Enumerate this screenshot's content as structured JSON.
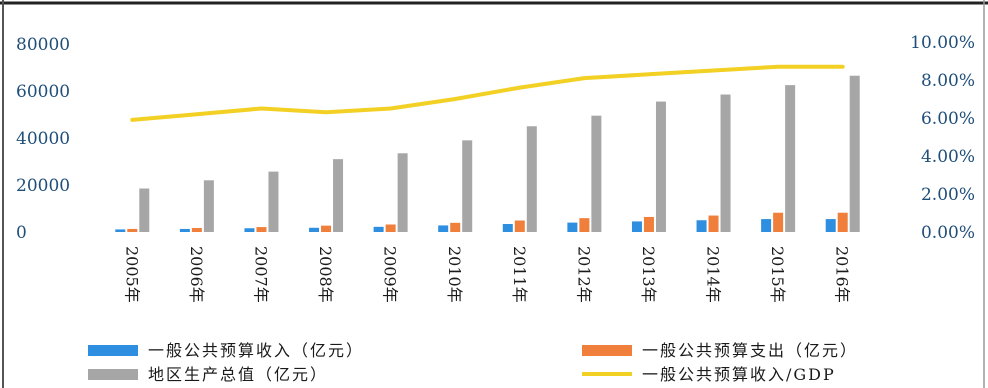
{
  "chart_data": {
    "type": "bar",
    "categories": [
      "2005年",
      "2006年",
      "2007年",
      "2008年",
      "2009年",
      "2010年",
      "2011年",
      "2012年",
      "2013年",
      "2014年",
      "2015年",
      "2016年"
    ],
    "series": [
      {
        "name": "一般公共预算收入（亿元）",
        "type": "bar",
        "axis": "left",
        "color": "#2e8fe0",
        "values": [
          1100,
          1300,
          1600,
          1800,
          2200,
          2800,
          3400,
          4000,
          4500,
          5000,
          5500,
          5500
        ]
      },
      {
        "name": "一般公共预算支出（亿元）",
        "type": "bar",
        "axis": "left",
        "color": "#f07f3c",
        "values": [
          1300,
          1700,
          2100,
          2700,
          3200,
          3900,
          4900,
          5900,
          6400,
          7000,
          8200,
          8200
        ]
      },
      {
        "name": "地区生产总值（亿元）",
        "type": "bar",
        "axis": "left",
        "color": "#a6a6a6",
        "values": [
          18500,
          22000,
          25700,
          31000,
          33500,
          39000,
          45000,
          49500,
          55500,
          58500,
          62500,
          66500
        ]
      },
      {
        "name": "一般公共预算收入/GDP",
        "type": "line",
        "axis": "right",
        "color": "#f2d024",
        "values": [
          5.9,
          6.2,
          6.5,
          6.3,
          6.5,
          7.0,
          7.6,
          8.1,
          8.3,
          8.5,
          8.7,
          8.7
        ]
      }
    ],
    "y_left": {
      "ylim": [
        0,
        80000
      ],
      "ticks": [
        "0",
        "20000",
        "40000",
        "60000",
        "80000"
      ]
    },
    "y_right": {
      "ylim": [
        0,
        10
      ],
      "ticks": [
        "0.00%",
        "2.00%",
        "4.00%",
        "6.00%",
        "8.00%",
        "10.00%"
      ]
    },
    "xlabel": "",
    "ylabel": "",
    "grid": false,
    "legend": "bottom"
  }
}
